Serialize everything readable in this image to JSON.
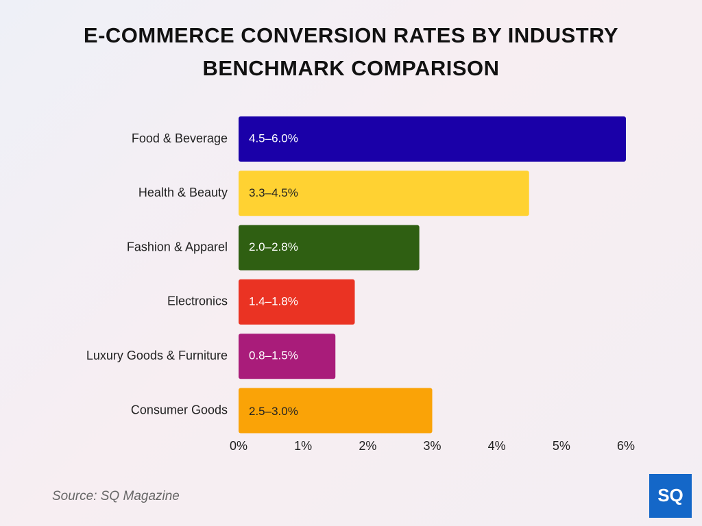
{
  "chart_data": {
    "type": "bar",
    "orientation": "horizontal",
    "title": "E-COMMERCE CONVERSION RATES BY INDUSTRY BENCHMARK COMPARISON",
    "categories": [
      "Food & Beverage",
      "Health & Beauty",
      "Fashion & Apparel",
      "Electronics",
      "Luxury Goods & Furniture",
      "Consumer Goods"
    ],
    "values": [
      6.0,
      4.5,
      2.8,
      1.8,
      1.5,
      3.0
    ],
    "value_labels": [
      "4.5–6.0%",
      "3.3–4.5%",
      "2.0–2.8%",
      "1.4–1.8%",
      "0.8–1.5%",
      "2.5–3.0%"
    ],
    "colors": [
      "#1a00a8",
      "#ffd232",
      "#2f5f12",
      "#ea3323",
      "#a91c7a",
      "#faa307"
    ],
    "xlim": [
      0,
      6
    ],
    "xticks": [
      {
        "value": 0,
        "label": "0%"
      },
      {
        "value": 1,
        "label": "1%"
      },
      {
        "value": 2,
        "label": "2%"
      },
      {
        "value": 3,
        "label": "3%"
      },
      {
        "value": 4,
        "label": "4%"
      },
      {
        "value": 5,
        "label": "5%"
      },
      {
        "value": 6,
        "label": "6%"
      }
    ],
    "grid": false,
    "source": "Source: SQ Magazine",
    "logo": "SQ"
  }
}
